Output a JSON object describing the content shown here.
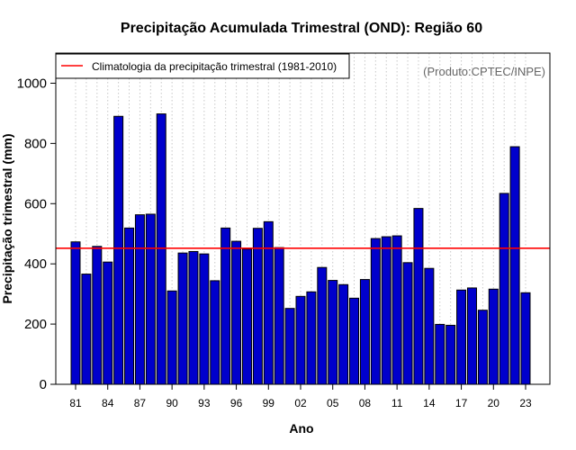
{
  "chart_data": {
    "type": "bar",
    "title": "Precipitação Acumulada Trimestral (OND): Região 60",
    "xlabel": "Ano",
    "ylabel": "Precipitação trimestral (mm)",
    "credit": "(Produto:CPTEC/INPE)",
    "ylim": [
      0,
      1100
    ],
    "yticks": [
      0,
      200,
      400,
      600,
      800,
      1000
    ],
    "categories": [
      "81",
      "82",
      "83",
      "84",
      "85",
      "86",
      "87",
      "88",
      "89",
      "90",
      "91",
      "92",
      "93",
      "94",
      "95",
      "96",
      "97",
      "98",
      "99",
      "00",
      "01",
      "02",
      "03",
      "04",
      "05",
      "06",
      "07",
      "08",
      "09",
      "10",
      "11",
      "12",
      "13",
      "14",
      "15",
      "16",
      "17",
      "18",
      "19",
      "20",
      "21",
      "22",
      "23"
    ],
    "xtick_labels": [
      "81",
      "84",
      "87",
      "90",
      "93",
      "96",
      "99",
      "02",
      "05",
      "08",
      "11",
      "14",
      "17",
      "20",
      "23"
    ],
    "series": [
      {
        "name": "Precipitação trimestral",
        "color": "#0000cc",
        "values": [
          473,
          366,
          458,
          406,
          890,
          519,
          563,
          565,
          898,
          310,
          436,
          441,
          433,
          344,
          519,
          475,
          449,
          518,
          540,
          454,
          252,
          292,
          307,
          388,
          345,
          331,
          286,
          348,
          484,
          490,
          493,
          404,
          584,
          385,
          199,
          196,
          313,
          320,
          246,
          316,
          634,
          789,
          304
        ]
      }
    ],
    "climatology": {
      "label": "Climatologia da precipitação trimestral (1981-2010)",
      "value": 452,
      "color": "#ff0000"
    },
    "legend_position": "top-left",
    "grid": "vertical dotted"
  }
}
